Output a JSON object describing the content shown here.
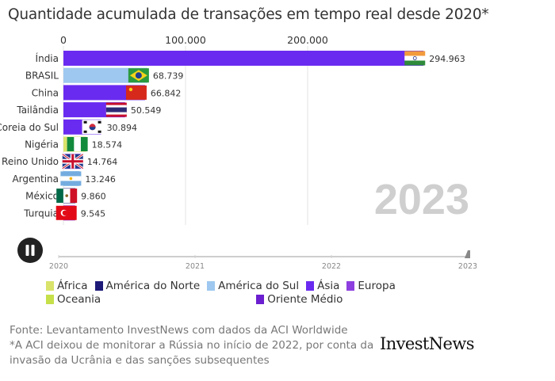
{
  "title": "Quantidade acumulada de transações em tempo real desde 2020*",
  "chart_data": {
    "type": "bar",
    "orientation": "horizontal",
    "categories": [
      "Índia",
      "BRASIL",
      "China",
      "Tailândia",
      "Coreia do Sul",
      "Nigéria",
      "Reino Unido",
      "Argentina",
      "México",
      "Turquia"
    ],
    "values": [
      294963,
      68739,
      66842,
      50549,
      30894,
      18574,
      14764,
      13246,
      9860,
      9545
    ],
    "value_labels": [
      "294.963",
      "68.739",
      "66.842",
      "50.549",
      "30.894",
      "18.574",
      "14.764",
      "13.246",
      "9.860",
      "9.545"
    ],
    "regions": [
      "Ásia",
      "América do Sul",
      "Ásia",
      "Ásia",
      "Ásia",
      "África",
      "Europa",
      "América do Sul",
      "América do Norte",
      "Europa"
    ],
    "flags": [
      "india-flag",
      "brazil-flag",
      "china-flag",
      "thailand-flag",
      "south-korea-flag",
      "nigeria-flag",
      "uk-flag",
      "argentina-flag",
      "mexico-flag",
      "turkey-flag"
    ],
    "xlim": [
      0,
      330000
    ],
    "x_ticks": [
      0,
      100000,
      200000
    ],
    "x_tick_labels": [
      "0",
      "100.000",
      "200.000"
    ],
    "grid": true,
    "year_label": "2023",
    "timeline": {
      "years": [
        "2020",
        "2021",
        "2022",
        "2023"
      ],
      "current": "2023",
      "progress": 1.0
    }
  },
  "legend": [
    {
      "label": "África",
      "color": "#d9e36a"
    },
    {
      "label": "América do Norte",
      "color": "#1e1a78"
    },
    {
      "label": "América do Sul",
      "color": "#9ec8ef"
    },
    {
      "label": "Ásia",
      "color": "#6a2bf0"
    },
    {
      "label": "Europa",
      "color": "#8e3fe0"
    },
    {
      "label": "Oceania",
      "color": "#c6e04a"
    },
    {
      "label": "Oriente Médio",
      "color": "#6b1fd0"
    }
  ],
  "controls": {
    "pause_icon": "pause-icon"
  },
  "footer": {
    "source": "Fonte: Levantamento InvestNews com dados da ACI Worldwide",
    "note": "*A ACI deixou de monitorar a Rússia no início de 2022, por conta da invasão da Ucrânia e das sanções subsequentes"
  },
  "logo": "InvestNews"
}
